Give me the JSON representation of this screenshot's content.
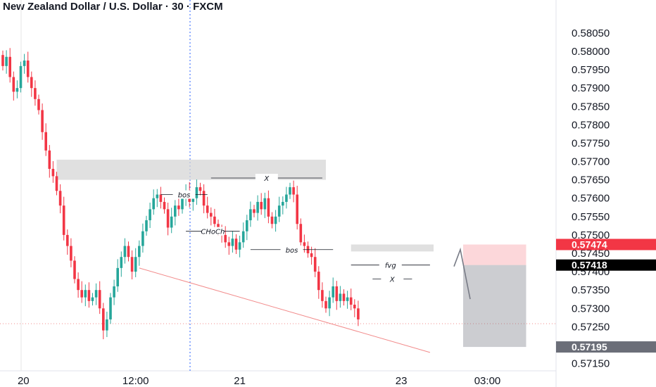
{
  "title": "New Zealand Dollar / U.S. Dollar · 30 · FXCM",
  "colors": {
    "up": "#26a69a",
    "down": "#f23645",
    "zone": "#d6d6d6",
    "trend": "#f28b8b",
    "current": "#f23645",
    "target": "#000000",
    "stop": "#f23645"
  },
  "chart_data": {
    "type": "candlestick",
    "title": "New Zealand Dollar / U.S. Dollar · 30 · FXCM",
    "ylim": [
      0.5713,
      0.5809
    ],
    "y_ticks": [
      "0.58050",
      "0.58000",
      "0.57950",
      "0.57900",
      "0.57850",
      "0.57800",
      "0.57750",
      "0.57700",
      "0.57650",
      "0.57600",
      "0.57550",
      "0.57500",
      "0.57450",
      "0.57400",
      "0.57350",
      "0.57300",
      "0.57250",
      "0.57200",
      "0.57150"
    ],
    "x_ticks": [
      "20",
      "12:00",
      "21",
      "23",
      "03:00"
    ],
    "x_tick_index": [
      3,
      37,
      66,
      111,
      135
    ],
    "grid": false,
    "closes": [
      0.5796,
      0.57985,
      0.5793,
      0.5789,
      0.579,
      0.5796,
      0.57975,
      0.5793,
      0.579,
      0.5787,
      0.5784,
      0.5778,
      0.5773,
      0.5768,
      0.5766,
      0.5762,
      0.5758,
      0.575,
      0.5747,
      0.5743,
      0.5738,
      0.5735,
      0.5733,
      0.5735,
      0.5732,
      0.5733,
      0.5735,
      0.573,
      0.5724,
      0.5727,
      0.5733,
      0.5736,
      0.5741,
      0.5744,
      0.5747,
      0.5744,
      0.574,
      0.5744,
      0.5747,
      0.5751,
      0.5754,
      0.5757,
      0.576,
      0.5761,
      0.5759,
      0.5757,
      0.5752,
      0.5755,
      0.5758,
      0.5757,
      0.576,
      0.5762,
      0.5759,
      0.576,
      0.5763,
      0.5762,
      0.5758,
      0.5756,
      0.5755,
      0.5753,
      0.5751,
      0.575,
      0.5748,
      0.5747,
      0.5749,
      0.5746,
      0.5748,
      0.5751,
      0.5754,
      0.5757,
      0.5756,
      0.5759,
      0.5757,
      0.576,
      0.5755,
      0.5753,
      0.5755,
      0.5758,
      0.5759,
      0.5761,
      0.5763,
      0.5761,
      0.5753,
      0.5748,
      0.5747,
      0.5745,
      0.5744,
      0.574,
      0.5735,
      0.5732,
      0.573,
      0.5733,
      0.5736,
      0.5732,
      0.5734,
      0.5732,
      0.5733,
      0.5731,
      0.573,
      0.5727
    ],
    "annotations": {
      "supply_zone": {
        "y_top": 0.57705,
        "y_bottom": 0.5765,
        "x_from": 15,
        "x_to": 90,
        "label": ""
      },
      "fvg_zone": {
        "y_top": 0.57474,
        "y_bottom": 0.57455,
        "x_from": 97,
        "x_to": 120
      },
      "bos_1": {
        "label": "bos",
        "y": 0.5761,
        "x_from": 44,
        "x_to": 57
      },
      "choch": {
        "label": "CHoCh",
        "y": 0.5751,
        "x_from": 51,
        "x_to": 66
      },
      "x_high": {
        "label": "X",
        "y": 0.57655,
        "x_from": 58,
        "x_to": 89
      },
      "bos_2": {
        "label": "bos",
        "y": 0.5746,
        "x_from": 69,
        "x_to": 92
      },
      "fvg": {
        "label": "fvg",
        "y": 0.57418,
        "x_from": 97,
        "x_to": 119
      },
      "x_low": {
        "label": "X",
        "y": 0.5738,
        "x_from": 103,
        "x_to": 114
      },
      "trendline": {
        "x_from": 38,
        "y_from": 0.5741,
        "x_to": 119,
        "y_to": 0.5718
      }
    },
    "position": {
      "entry": 0.57418,
      "stop": 0.57474,
      "target": 0.57195,
      "x_from": 120,
      "x_to": 135
    },
    "current_price": "0.57474",
    "entry_label": "0.57418",
    "target_label": "0.57195"
  }
}
